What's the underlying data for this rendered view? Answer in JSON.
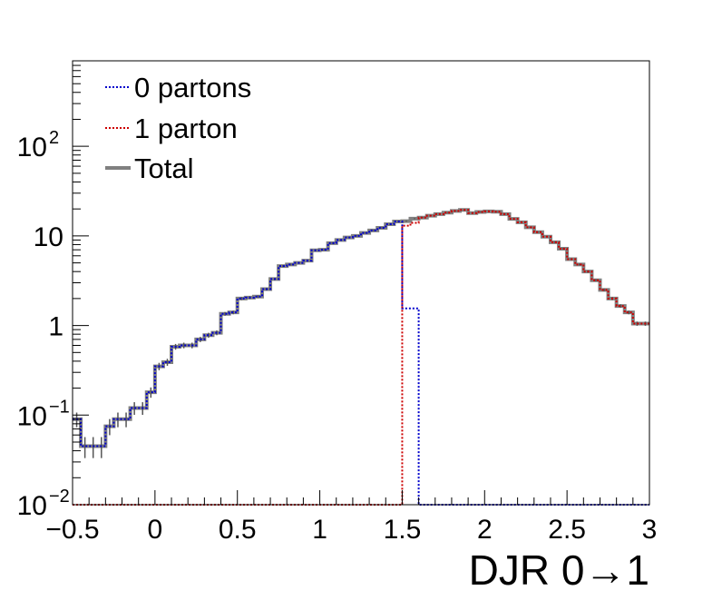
{
  "chart_data": {
    "type": "line",
    "xlabel": "DJR 0→1",
    "ylabel": "",
    "xlim": [
      -0.5,
      3
    ],
    "ylim": [
      0.01,
      900
    ],
    "yscale": "log",
    "grid": false,
    "legend_position": "top-left",
    "x_ticks": [
      {
        "value": -0.5,
        "label": "−0.5"
      },
      {
        "value": 0,
        "label": "0"
      },
      {
        "value": 0.5,
        "label": "0.5"
      },
      {
        "value": 1,
        "label": "1"
      },
      {
        "value": 1.5,
        "label": "1.5"
      },
      {
        "value": 2,
        "label": "2"
      },
      {
        "value": 2.5,
        "label": "2.5"
      },
      {
        "value": 3,
        "label": "3"
      }
    ],
    "y_ticks": [
      {
        "value": 0.01,
        "base": "10",
        "exp": "−2"
      },
      {
        "value": 0.1,
        "base": "10",
        "exp": "−1"
      },
      {
        "value": 1,
        "base": "1",
        "exp": ""
      },
      {
        "value": 10,
        "base": "10",
        "exp": ""
      },
      {
        "value": 100,
        "base": "10",
        "exp": "2"
      }
    ],
    "bin_width": 0.05,
    "x_start": -0.5,
    "series": [
      {
        "name": "0 partons",
        "color": "#0000cc",
        "style": "dotted",
        "values": [
          0.09,
          0.045,
          0.045,
          0.045,
          0.075,
          0.09,
          0.09,
          0.12,
          0.12,
          0.18,
          0.35,
          0.39,
          0.58,
          0.6,
          0.6,
          0.7,
          0.78,
          0.83,
          1.35,
          1.4,
          2.0,
          2.05,
          2.1,
          2.55,
          3.3,
          4.6,
          4.8,
          5.0,
          5.3,
          6.9,
          7.0,
          8.3,
          9.0,
          9.6,
          10.0,
          10.8,
          11.5,
          12.3,
          13.5,
          14.5,
          1.55,
          1.55,
          0.01,
          0.01,
          0.01,
          0.01,
          0.01,
          0.01,
          0.01,
          0.01,
          0.01,
          0.01,
          0.01,
          0.01,
          0.01,
          0.01,
          0.01,
          0.01,
          0.01,
          0.01,
          0.01,
          0.01,
          0.01,
          0.01,
          0.01,
          0.01,
          0.01,
          0.01,
          0.01,
          0.01
        ]
      },
      {
        "name": "1 parton",
        "color": "#cc0000",
        "style": "dotted",
        "values": [
          0.01,
          0.01,
          0.01,
          0.01,
          0.01,
          0.01,
          0.01,
          0.01,
          0.01,
          0.01,
          0.01,
          0.01,
          0.01,
          0.01,
          0.01,
          0.01,
          0.01,
          0.01,
          0.01,
          0.01,
          0.01,
          0.01,
          0.01,
          0.01,
          0.01,
          0.01,
          0.01,
          0.01,
          0.01,
          0.01,
          0.01,
          0.01,
          0.01,
          0.01,
          0.01,
          0.01,
          0.01,
          0.01,
          0.01,
          0.01,
          13.0,
          14.0,
          16.0,
          16.8,
          17.5,
          18.2,
          19.0,
          19.5,
          18.0,
          18.5,
          18.8,
          18.6,
          17.5,
          15.5,
          14.2,
          12.5,
          11.0,
          9.8,
          8.5,
          7.2,
          5.5,
          4.8,
          4.0,
          3.2,
          2.5,
          2.0,
          1.65,
          1.4,
          1.05,
          1.05
        ]
      },
      {
        "name": "Total",
        "color": "#808080",
        "style": "solid",
        "values": [
          0.09,
          0.045,
          0.045,
          0.045,
          0.075,
          0.09,
          0.09,
          0.12,
          0.12,
          0.18,
          0.35,
          0.39,
          0.58,
          0.6,
          0.6,
          0.7,
          0.78,
          0.83,
          1.35,
          1.4,
          2.0,
          2.05,
          2.1,
          2.55,
          3.3,
          4.6,
          4.8,
          5.0,
          5.3,
          6.9,
          7.0,
          8.3,
          9.0,
          9.6,
          10.0,
          10.8,
          11.5,
          12.3,
          13.5,
          14.5,
          14.6,
          15.6,
          16.0,
          16.8,
          17.5,
          18.2,
          19.0,
          19.5,
          18.0,
          18.5,
          18.8,
          18.6,
          17.5,
          15.5,
          14.2,
          12.5,
          11.0,
          9.8,
          8.5,
          7.2,
          5.5,
          4.8,
          4.0,
          3.2,
          2.5,
          2.0,
          1.65,
          1.4,
          1.05,
          1.05
        ]
      }
    ]
  }
}
